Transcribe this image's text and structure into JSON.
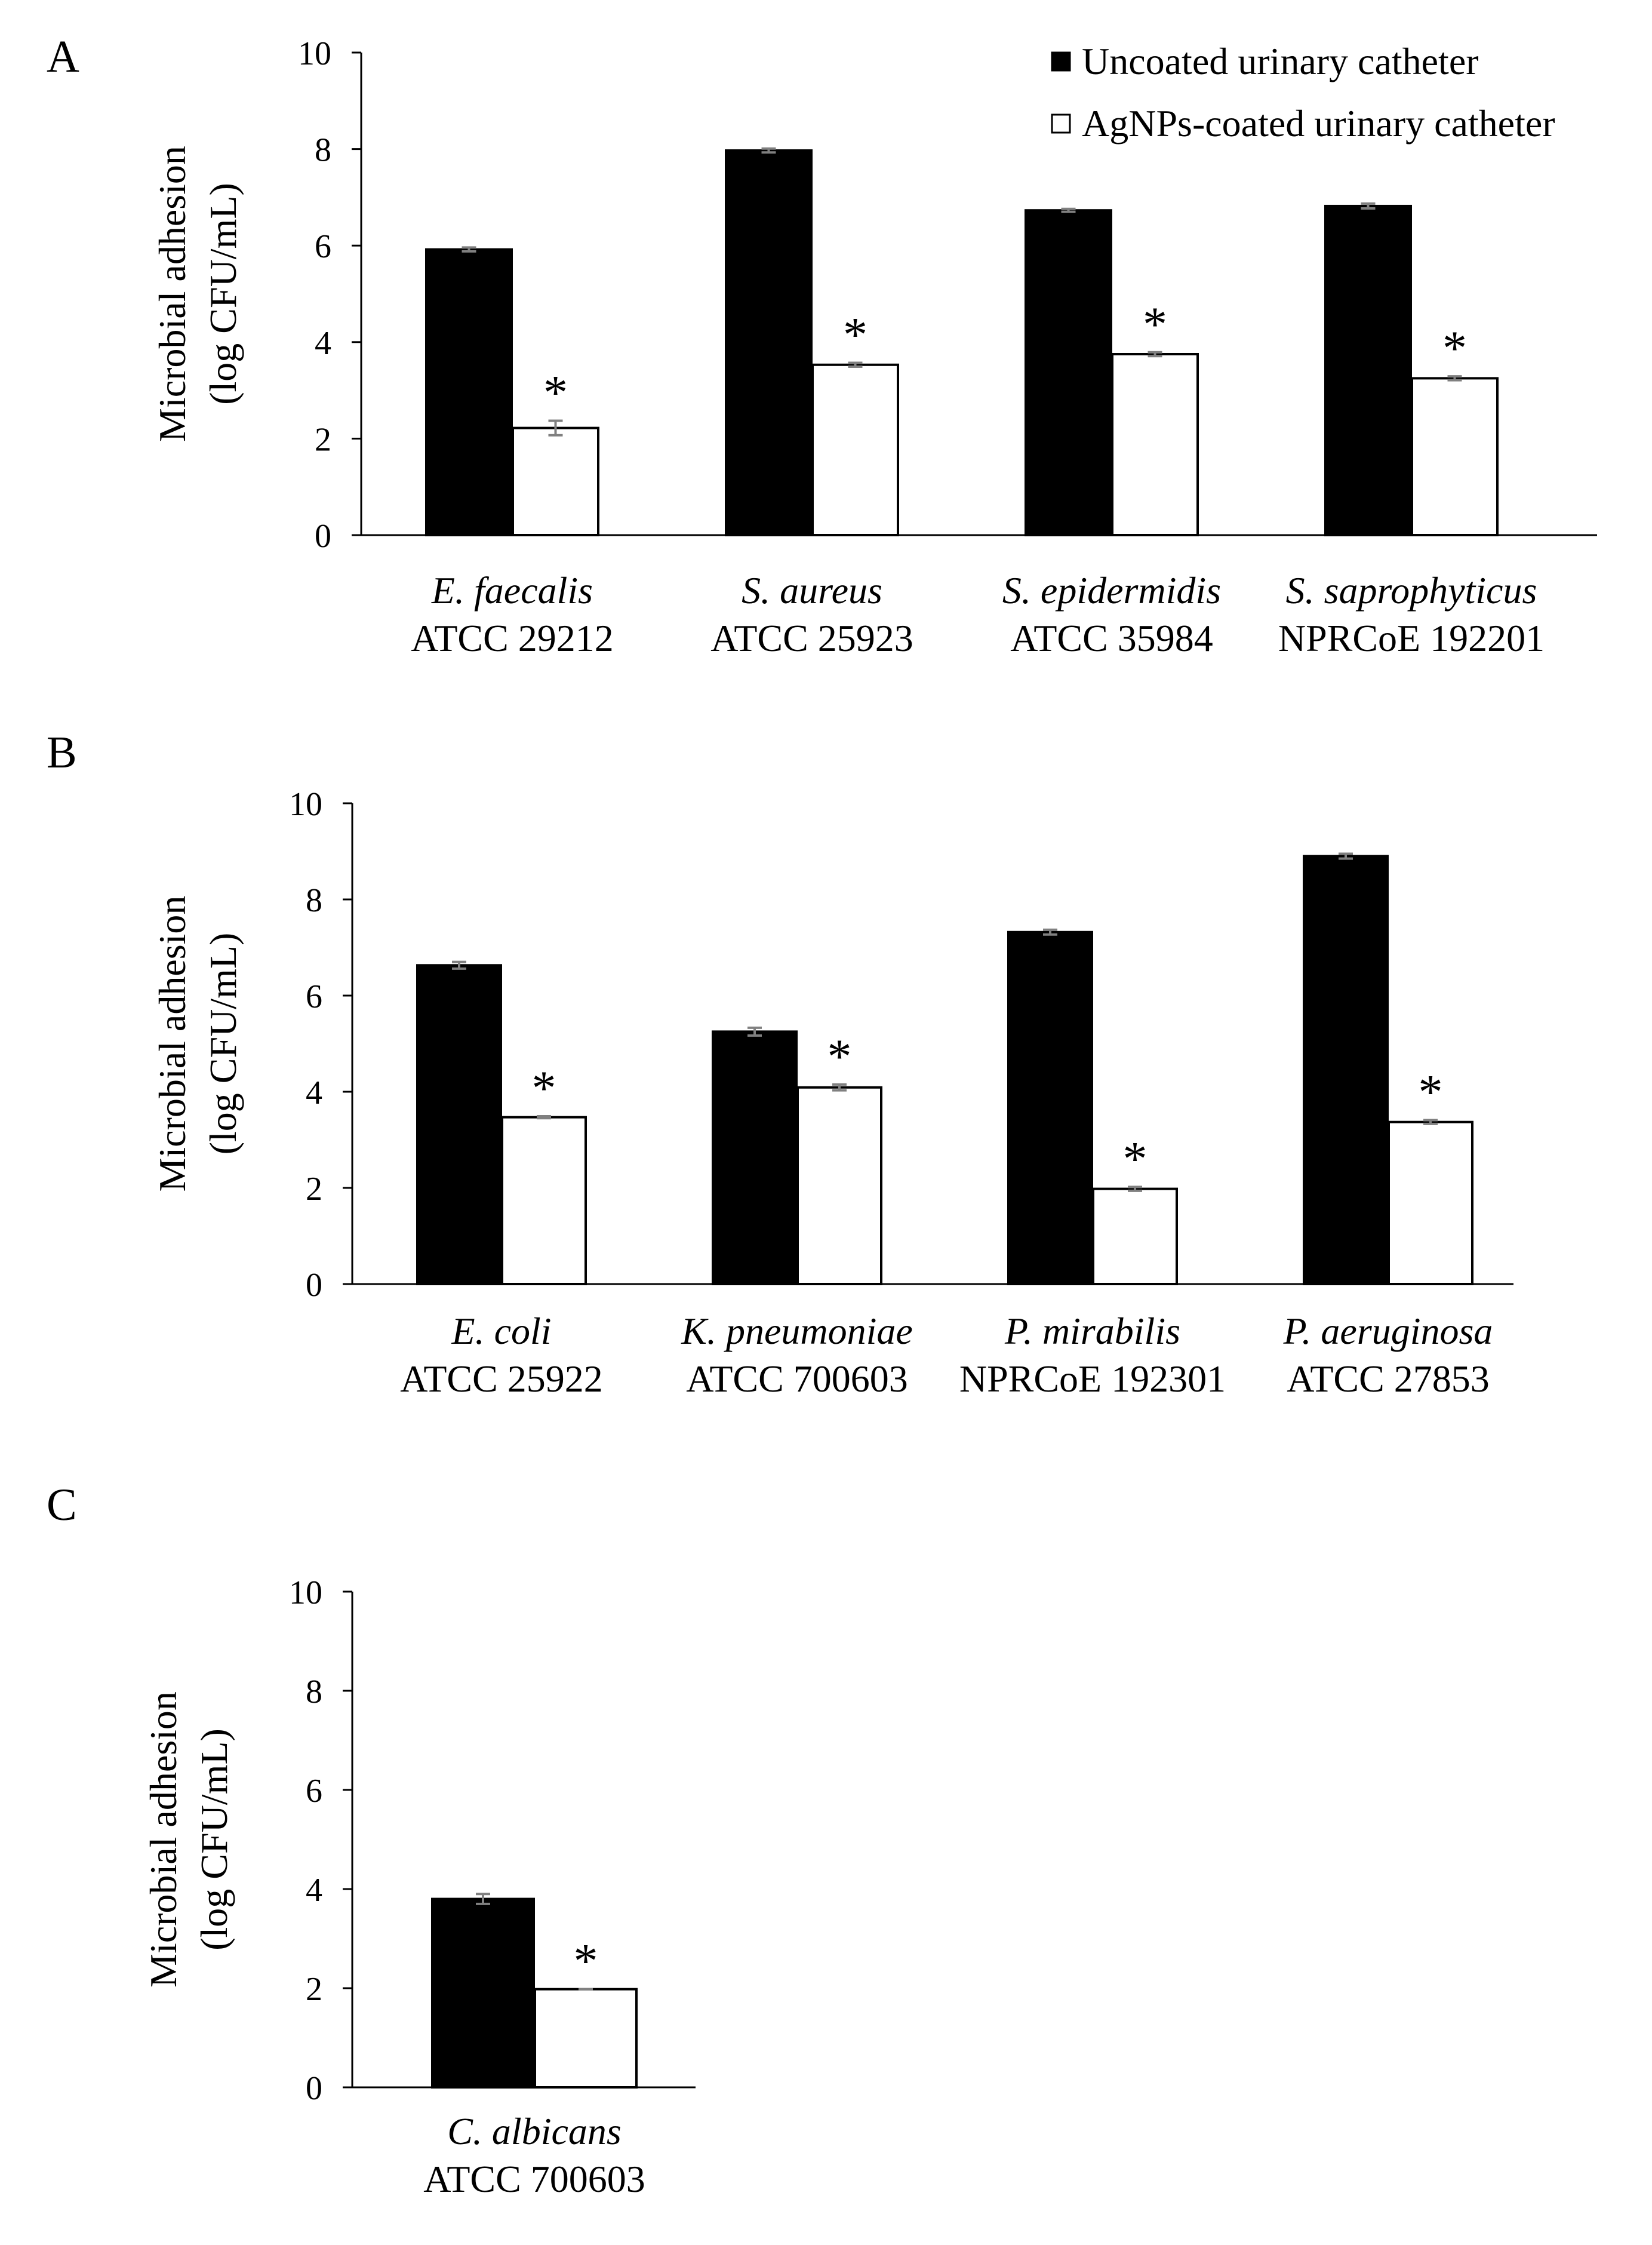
{
  "legend": {
    "uncoated": "Uncoated urinary catheter",
    "coated": "AgNPs-coated urinary catheter"
  },
  "colors": {
    "uncoated": "#000000",
    "coated": "#ffffff",
    "error_bar": "#808080"
  },
  "chart_data": [
    {
      "type": "bar",
      "panel": "A",
      "ylabel_line1": "Microbial adhesion",
      "ylabel_line2": "(log CFU/mL)",
      "ylim": [
        0,
        10
      ],
      "yticks": [
        0,
        2,
        4,
        6,
        8,
        10
      ],
      "categories": [
        {
          "species": "E. faecalis",
          "strain": "ATCC 29212"
        },
        {
          "species": "S. aureus",
          "strain": "ATCC 25923"
        },
        {
          "species": "S. epidermidis",
          "strain": "ATCC 35984"
        },
        {
          "species": "S. saprophyticus",
          "strain": "NPRCoE 192201"
        }
      ],
      "series": [
        {
          "name": "Uncoated urinary catheter",
          "values": [
            5.92,
            7.97,
            6.73,
            6.82
          ],
          "errors": [
            0.04,
            0.04,
            0.03,
            0.05
          ]
        },
        {
          "name": "AgNPs-coated urinary catheter",
          "values": [
            2.22,
            3.53,
            3.75,
            3.25
          ],
          "errors": [
            0.15,
            0.04,
            0.04,
            0.04
          ]
        }
      ],
      "significance": [
        "*",
        "*",
        "*",
        "*"
      ]
    },
    {
      "type": "bar",
      "panel": "B",
      "ylabel_line1": "Microbial adhesion",
      "ylabel_line2": "(log CFU/mL)",
      "ylim": [
        0,
        10
      ],
      "yticks": [
        0,
        2,
        4,
        6,
        8,
        10
      ],
      "categories": [
        {
          "species": "E. coli",
          "strain": "ATCC 25922"
        },
        {
          "species": "K. pneumoniae",
          "strain": "ATCC 700603"
        },
        {
          "species": "P. mirabilis",
          "strain": "NPRCoE 192301"
        },
        {
          "species": "P. aeruginosa",
          "strain": "ATCC 27853"
        }
      ],
      "series": [
        {
          "name": "Uncoated urinary catheter",
          "values": [
            6.63,
            5.25,
            7.32,
            8.9
          ],
          "errors": [
            0.07,
            0.08,
            0.05,
            0.05
          ]
        },
        {
          "name": "AgNPs-coated urinary catheter",
          "values": [
            3.47,
            4.09,
            1.98,
            3.37
          ],
          "errors": [
            0.02,
            0.06,
            0.04,
            0.04
          ]
        }
      ],
      "significance": [
        "*",
        "*",
        "*",
        "*"
      ]
    },
    {
      "type": "bar",
      "panel": "C",
      "ylabel_line1": "Microbial adhesion",
      "ylabel_line2": "(log CFU/mL)",
      "ylim": [
        0,
        10
      ],
      "yticks": [
        0,
        2,
        4,
        6,
        8,
        10
      ],
      "categories": [
        {
          "species": "C. albicans",
          "strain": "ATCC 700603"
        }
      ],
      "series": [
        {
          "name": "Uncoated urinary catheter",
          "values": [
            3.8
          ],
          "errors": [
            0.1
          ]
        },
        {
          "name": "AgNPs-coated urinary catheter",
          "values": [
            1.98
          ],
          "errors": [
            0.0
          ]
        }
      ],
      "significance": [
        "*"
      ]
    }
  ]
}
